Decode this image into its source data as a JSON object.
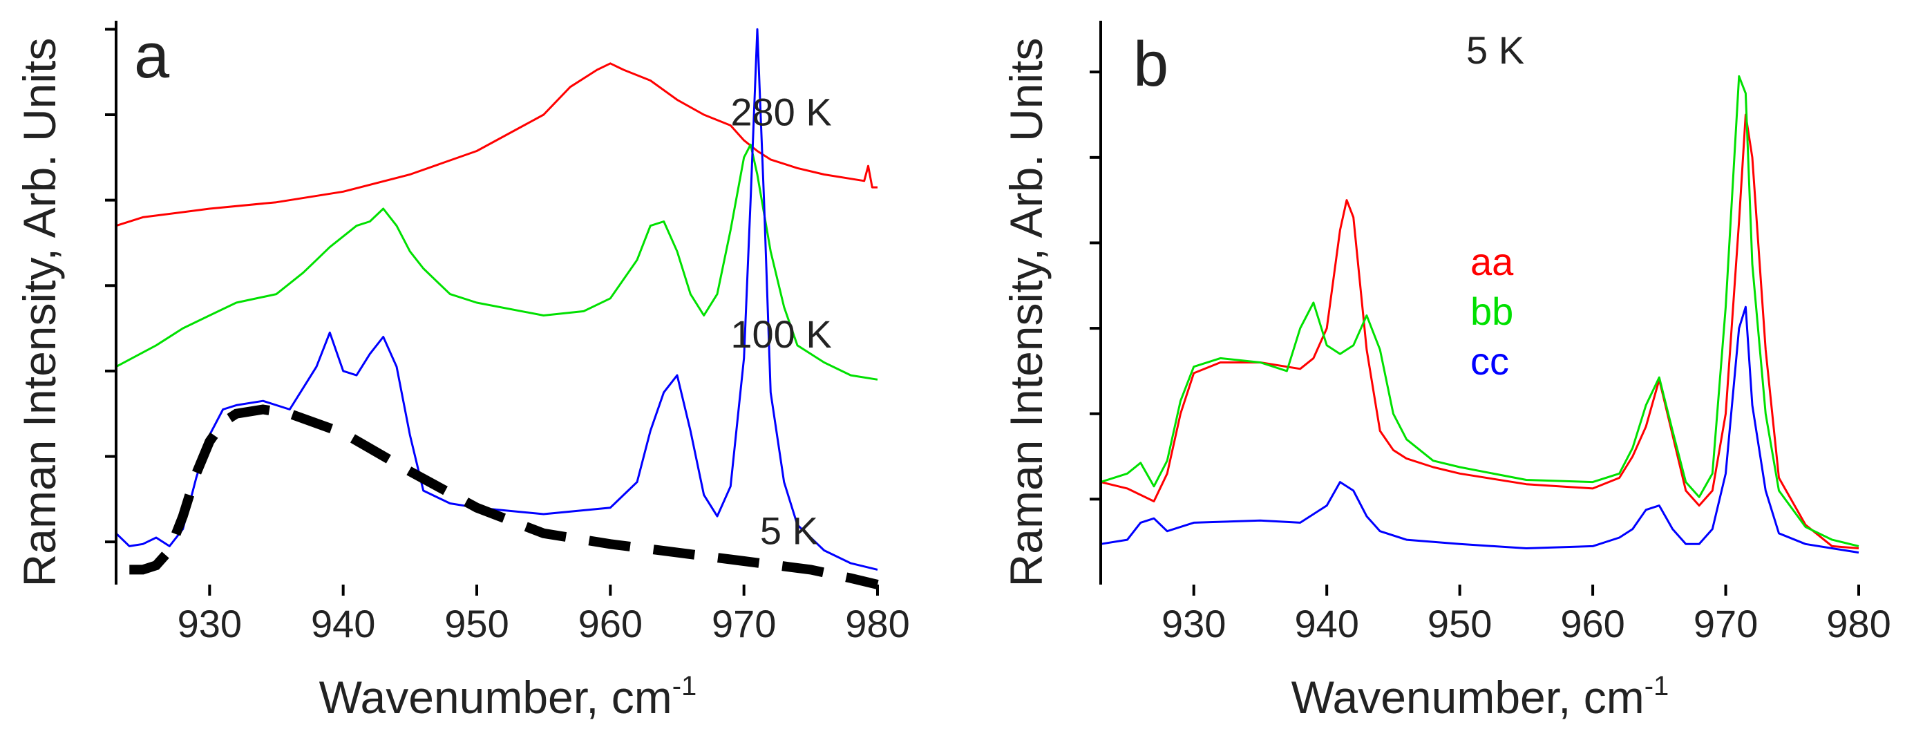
{
  "chart_data": [
    {
      "panel": "a",
      "type": "line",
      "xlabel": "Wavenumber, cm",
      "xlabel_sup": "-1",
      "ylabel": "Raman Intensity, Arb. Units",
      "xlim": [
        923,
        980
      ],
      "ylim": [
        0,
        13.2
      ],
      "xticks": [
        "930",
        "940",
        "950",
        "960",
        "970",
        "980"
      ],
      "ytick_values": [
        1,
        3,
        5,
        7,
        9,
        11,
        13
      ],
      "annotations": [
        {
          "text": "280 K",
          "x": 969,
          "y": 10.75
        },
        {
          "text": "100 K",
          "x": 969,
          "y": 5.55
        },
        {
          "text": "5 K",
          "x": 971.2,
          "y": 0.95
        }
      ],
      "series": [
        {
          "name": "",
          "color": "#ff0000",
          "x": [
            923,
            925,
            930,
            935,
            940,
            945,
            950,
            955,
            957,
            959,
            960,
            961,
            963,
            965,
            967,
            969,
            970,
            971,
            972,
            974,
            976,
            978,
            979,
            979.3,
            979.6,
            980
          ],
          "y": [
            8.4,
            8.6,
            8.8,
            8.95,
            9.2,
            9.6,
            10.15,
            11.0,
            11.65,
            12.05,
            12.2,
            12.05,
            11.8,
            11.35,
            11.0,
            10.75,
            10.4,
            10.15,
            9.95,
            9.75,
            9.6,
            9.5,
            9.45,
            9.8,
            9.3,
            9.3
          ]
        },
        {
          "name": "",
          "color": "#00e000",
          "x": [
            923,
            926,
            928,
            930,
            932,
            935,
            937,
            938,
            939,
            941,
            942,
            943,
            944,
            945,
            946,
            948,
            950,
            955,
            958,
            960,
            962,
            963,
            964,
            965,
            966,
            967,
            968,
            969,
            970,
            970.5,
            971,
            972,
            973,
            974,
            976,
            978,
            980
          ],
          "y": [
            5.1,
            5.6,
            6.0,
            6.3,
            6.6,
            6.8,
            7.3,
            7.6,
            7.9,
            8.4,
            8.5,
            8.8,
            8.4,
            7.8,
            7.4,
            6.8,
            6.6,
            6.3,
            6.4,
            6.7,
            7.6,
            8.4,
            8.5,
            7.8,
            6.8,
            6.3,
            6.8,
            8.3,
            10.0,
            10.3,
            9.6,
            7.8,
            6.5,
            5.6,
            5.2,
            4.9,
            4.8
          ]
        },
        {
          "name": "",
          "color": "#0000ff",
          "x": [
            923,
            924,
            925,
            926,
            927,
            928,
            929,
            930,
            931,
            932,
            934,
            936,
            937,
            938,
            939,
            940,
            941,
            942,
            943,
            944,
            945,
            946,
            948,
            950,
            955,
            960,
            962,
            963,
            964,
            965,
            966,
            967,
            968,
            969,
            970,
            970.5,
            971,
            971.5,
            972,
            973,
            974,
            976,
            978,
            980
          ],
          "y": [
            1.2,
            0.9,
            0.95,
            1.1,
            0.9,
            1.3,
            2.5,
            3.5,
            4.1,
            4.2,
            4.3,
            4.1,
            4.6,
            5.1,
            5.9,
            5.0,
            4.9,
            5.4,
            5.8,
            5.1,
            3.5,
            2.2,
            1.9,
            1.8,
            1.65,
            1.8,
            2.4,
            3.6,
            4.5,
            4.9,
            3.6,
            2.1,
            1.6,
            2.3,
            5.3,
            9.0,
            13.0,
            9.0,
            4.5,
            2.4,
            1.4,
            0.8,
            0.5,
            0.35
          ]
        },
        {
          "name": "",
          "color": "#000000",
          "style": "dashed",
          "x": [
            924,
            925,
            926,
            927,
            928,
            929,
            930,
            931,
            932,
            934,
            936,
            940,
            945,
            950,
            955,
            960,
            965,
            970,
            975,
            978,
            980
          ],
          "y": [
            0.35,
            0.35,
            0.45,
            0.8,
            1.6,
            2.6,
            3.35,
            3.8,
            4.0,
            4.1,
            4.0,
            3.55,
            2.65,
            1.8,
            1.2,
            0.95,
            0.75,
            0.55,
            0.35,
            0.15,
            0.0
          ]
        }
      ]
    },
    {
      "panel": "b",
      "type": "line",
      "title": "5 K",
      "xlabel": "Wavenumber, cm",
      "xlabel_sup": "-1",
      "ylabel": "Raman Intensity, Arb. Units",
      "xlim": [
        923,
        980
      ],
      "ylim": [
        0,
        13.2
      ],
      "xticks": [
        "930",
        "940",
        "950",
        "960",
        "970",
        "980"
      ],
      "ytick_values": [
        2,
        4,
        6,
        8,
        10,
        12
      ],
      "legend_position": "center",
      "legend": [
        {
          "label": "aa",
          "color": "#ff0000"
        },
        {
          "label": "bb",
          "color": "#00e000"
        },
        {
          "label": "cc",
          "color": "#0000ff"
        }
      ],
      "series": [
        {
          "name": "aa",
          "color": "#ff0000",
          "x": [
            923,
            925,
            927,
            928,
            929,
            930,
            932,
            935,
            938,
            939,
            940,
            941,
            941.5,
            942,
            943,
            944,
            945,
            946,
            948,
            950,
            955,
            960,
            962,
            963,
            964,
            965,
            966,
            967,
            968,
            969,
            970,
            971,
            971.5,
            972,
            973,
            974,
            976,
            978,
            980
          ],
          "y": [
            2.4,
            2.25,
            1.95,
            2.6,
            4.0,
            4.95,
            5.2,
            5.2,
            5.05,
            5.3,
            6.0,
            8.3,
            9.0,
            8.6,
            5.5,
            3.6,
            3.15,
            2.95,
            2.75,
            2.6,
            2.35,
            2.25,
            2.5,
            3.0,
            3.7,
            4.8,
            3.5,
            2.2,
            1.85,
            2.2,
            4.0,
            8.5,
            11.0,
            10.0,
            5.5,
            2.5,
            1.4,
            0.9,
            0.85
          ]
        },
        {
          "name": "bb",
          "color": "#00e000",
          "x": [
            923,
            925,
            926,
            927,
            928,
            929,
            930,
            932,
            935,
            937,
            938,
            939,
            940,
            941,
            942,
            943,
            944,
            945,
            946,
            948,
            950,
            955,
            960,
            962,
            963,
            964,
            965,
            966,
            967,
            968,
            969,
            970,
            971,
            971.5,
            972,
            973,
            974,
            976,
            978,
            980
          ],
          "y": [
            2.4,
            2.6,
            2.85,
            2.3,
            2.9,
            4.3,
            5.1,
            5.3,
            5.2,
            5.0,
            6.0,
            6.6,
            5.6,
            5.4,
            5.6,
            6.3,
            5.5,
            4.0,
            3.4,
            2.9,
            2.75,
            2.45,
            2.4,
            2.6,
            3.2,
            4.2,
            4.85,
            3.6,
            2.4,
            2.05,
            2.6,
            6.5,
            11.9,
            11.5,
            7.5,
            4.0,
            2.2,
            1.35,
            1.05,
            0.9
          ]
        },
        {
          "name": "cc",
          "color": "#0000ff",
          "x": [
            923,
            925,
            926,
            927,
            928,
            930,
            935,
            938,
            940,
            941,
            942,
            943,
            944,
            946,
            950,
            955,
            960,
            962,
            963,
            964,
            965,
            966,
            967,
            968,
            969,
            970,
            971,
            971.5,
            972,
            973,
            974,
            976,
            978,
            980
          ],
          "y": [
            0.95,
            1.05,
            1.45,
            1.55,
            1.25,
            1.45,
            1.5,
            1.45,
            1.85,
            2.4,
            2.2,
            1.6,
            1.25,
            1.05,
            0.95,
            0.85,
            0.9,
            1.1,
            1.3,
            1.75,
            1.85,
            1.3,
            0.95,
            0.95,
            1.3,
            2.6,
            6.0,
            6.5,
            4.2,
            2.2,
            1.2,
            0.95,
            0.85,
            0.75
          ]
        }
      ]
    }
  ]
}
